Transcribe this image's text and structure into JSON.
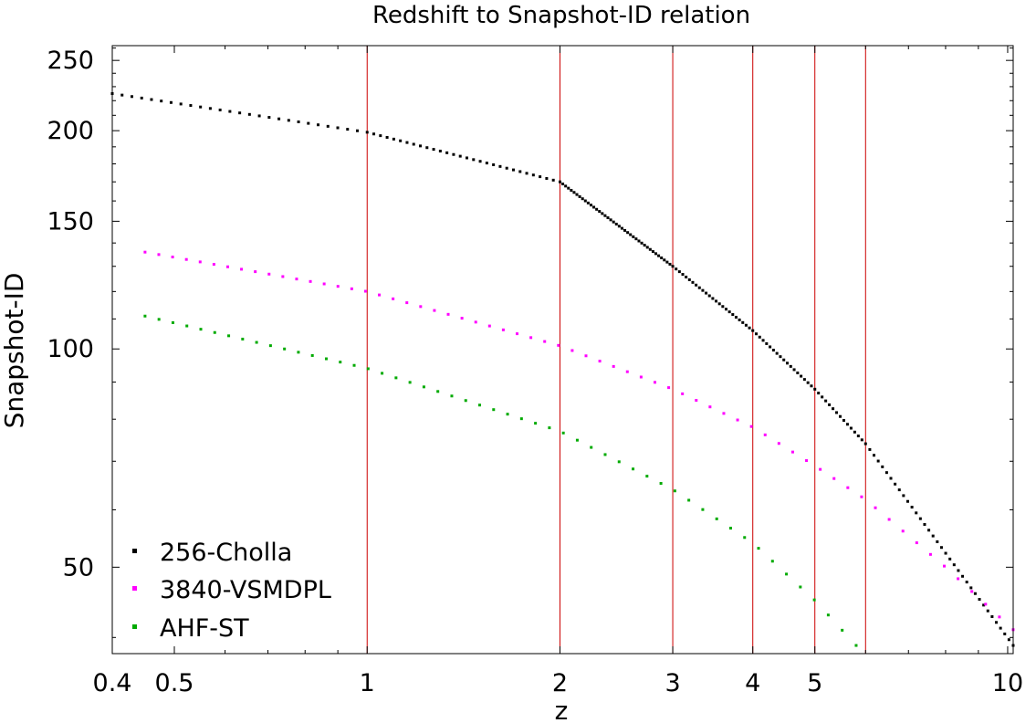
{
  "chart_data": {
    "type": "scatter",
    "title": "Redshift to Snapshot-ID relation",
    "xlabel": "z",
    "ylabel": "Snapshot-ID",
    "x_scale": "log",
    "y_scale": "log",
    "xlim": [
      0.4,
      10.2
    ],
    "ylim": [
      38,
      262
    ],
    "x_ticks": [
      0.4,
      0.5,
      1,
      2,
      3,
      4,
      5,
      10
    ],
    "x_tick_labels": [
      "0.4",
      "0.5",
      "1",
      "2",
      "3",
      "4",
      "5",
      "10"
    ],
    "y_ticks": [
      50,
      100,
      150,
      200,
      250
    ],
    "y_tick_labels": [
      "50",
      "100",
      "150",
      "200",
      "250"
    ],
    "vertical_lines": [
      1,
      2,
      3,
      4,
      5,
      6
    ],
    "vertical_line_color": "#cc0000",
    "grid": false,
    "legend_position": "bottom-left",
    "series": [
      {
        "name": "256-Cholla",
        "color": "#000000",
        "segments": [
          {
            "z_start": 0.4,
            "z_end": 1.0,
            "id_start": 225,
            "id_end": 199,
            "count": 26
          },
          {
            "z_start": 1.0,
            "z_end": 2.0,
            "id_start": 199,
            "id_end": 170,
            "count": 29
          },
          {
            "z_start": 2.0,
            "z_end": 3.0,
            "id_start": 170,
            "id_end": 130,
            "count": 40
          },
          {
            "z_start": 3.0,
            "z_end": 4.0,
            "id_start": 130,
            "id_end": 106,
            "count": 24
          },
          {
            "z_start": 4.0,
            "z_end": 5.0,
            "id_start": 106,
            "id_end": 88,
            "count": 18
          },
          {
            "z_start": 5.0,
            "z_end": 6.0,
            "id_start": 88,
            "id_end": 74,
            "count": 14
          },
          {
            "z_start": 6.0,
            "z_end": 10.2,
            "id_start": 74,
            "id_end": 39,
            "count": 35
          }
        ]
      },
      {
        "name": "3840-VSMDPL",
        "color": "#ff00ff",
        "anchors": [
          [
            0.45,
            136
          ],
          [
            1.0,
            120
          ],
          [
            2.0,
            101
          ],
          [
            3.0,
            88
          ],
          [
            4.0,
            78
          ],
          [
            5.0,
            69
          ],
          [
            6.0,
            62
          ],
          [
            8.0,
            50
          ],
          [
            10.2,
            41
          ]
        ],
        "count": 64
      },
      {
        "name": "AHF-ST",
        "color": "#00aa00",
        "anchors": [
          [
            0.45,
            111
          ],
          [
            1.0,
            94
          ],
          [
            2.0,
            77
          ],
          [
            3.0,
            64
          ],
          [
            4.0,
            54
          ],
          [
            5.0,
            45
          ],
          [
            5.8,
            39
          ]
        ],
        "count": 52
      }
    ]
  }
}
